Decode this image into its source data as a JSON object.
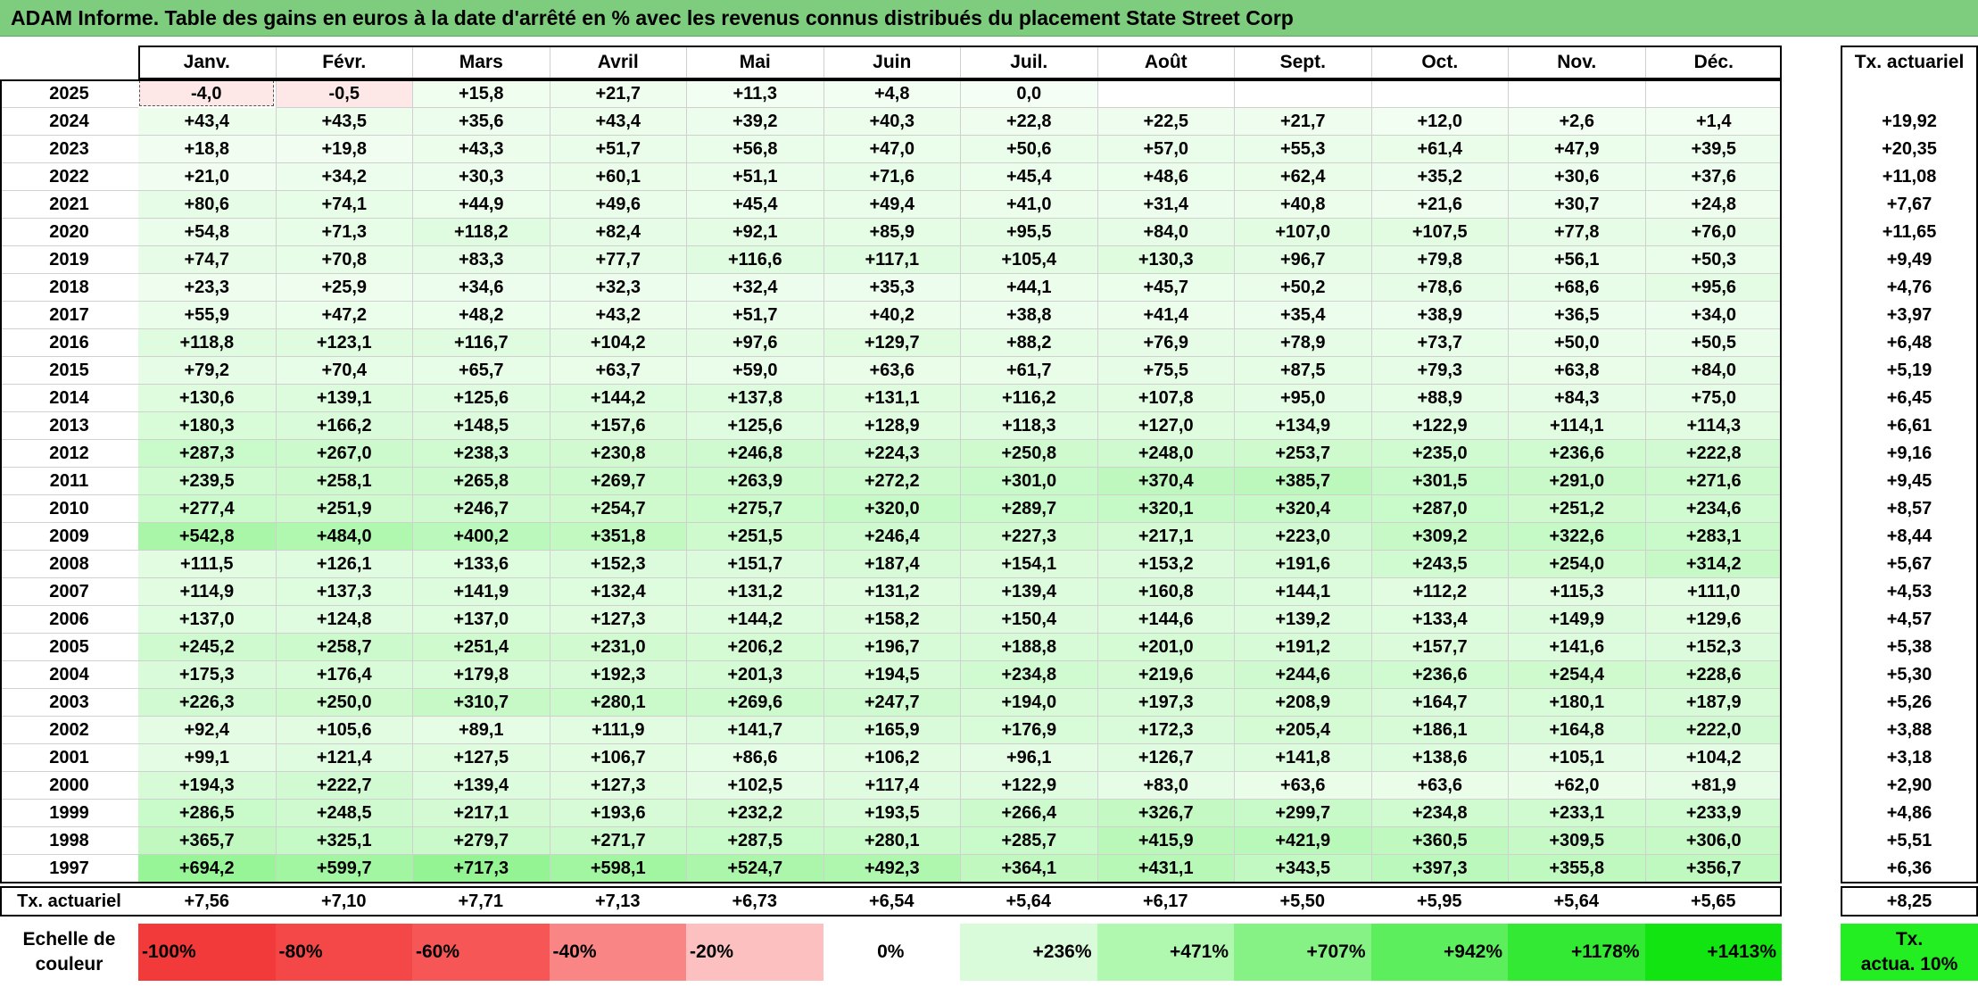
{
  "title": "ADAM Informe. Table des gains en euros à la date d'arrêté en % avec les revenus connus distribués du placement State Street Corp",
  "colors": {
    "title_bg": "#7ecc7e",
    "positive": "#5cf25c",
    "negative": "#ff5a5a"
  },
  "chart_data": {
    "type": "table",
    "columns": [
      "Janv.",
      "Févr.",
      "Mars",
      "Avril",
      "Mai",
      "Juin",
      "Juil.",
      "Août",
      "Sept.",
      "Oct.",
      "Nov.",
      "Déc."
    ],
    "rate_header": "Tx. actuariel",
    "rows": [
      {
        "year": "2025",
        "values": [
          "-4,0",
          "-0,5",
          "+15,8",
          "+21,7",
          "+11,3",
          "+4,8",
          "0,0",
          "",
          "",
          "",
          "",
          ""
        ],
        "rate": ""
      },
      {
        "year": "2024",
        "values": [
          "+43,4",
          "+43,5",
          "+35,6",
          "+43,4",
          "+39,2",
          "+40,3",
          "+22,8",
          "+22,5",
          "+21,7",
          "+12,0",
          "+2,6",
          "+1,4"
        ],
        "rate": "+19,92"
      },
      {
        "year": "2023",
        "values": [
          "+18,8",
          "+19,8",
          "+43,3",
          "+51,7",
          "+56,8",
          "+47,0",
          "+50,6",
          "+57,0",
          "+55,3",
          "+61,4",
          "+47,9",
          "+39,5"
        ],
        "rate": "+20,35"
      },
      {
        "year": "2022",
        "values": [
          "+21,0",
          "+34,2",
          "+30,3",
          "+60,1",
          "+51,1",
          "+71,6",
          "+45,4",
          "+48,6",
          "+62,4",
          "+35,2",
          "+30,6",
          "+37,6"
        ],
        "rate": "+11,08"
      },
      {
        "year": "2021",
        "values": [
          "+80,6",
          "+74,1",
          "+44,9",
          "+49,6",
          "+45,4",
          "+49,4",
          "+41,0",
          "+31,4",
          "+40,8",
          "+21,6",
          "+30,7",
          "+24,8"
        ],
        "rate": "+7,67"
      },
      {
        "year": "2020",
        "values": [
          "+54,8",
          "+71,3",
          "+118,2",
          "+82,4",
          "+92,1",
          "+85,9",
          "+95,5",
          "+84,0",
          "+107,0",
          "+107,5",
          "+77,8",
          "+76,0"
        ],
        "rate": "+11,65"
      },
      {
        "year": "2019",
        "values": [
          "+74,7",
          "+70,8",
          "+83,3",
          "+77,7",
          "+116,6",
          "+117,1",
          "+105,4",
          "+130,3",
          "+96,7",
          "+79,8",
          "+56,1",
          "+50,3"
        ],
        "rate": "+9,49"
      },
      {
        "year": "2018",
        "values": [
          "+23,3",
          "+25,9",
          "+34,6",
          "+32,3",
          "+32,4",
          "+35,3",
          "+44,1",
          "+45,7",
          "+50,2",
          "+78,6",
          "+68,6",
          "+95,6"
        ],
        "rate": "+4,76"
      },
      {
        "year": "2017",
        "values": [
          "+55,9",
          "+47,2",
          "+48,2",
          "+43,2",
          "+51,7",
          "+40,2",
          "+38,8",
          "+41,4",
          "+35,4",
          "+38,9",
          "+36,5",
          "+34,0"
        ],
        "rate": "+3,97"
      },
      {
        "year": "2016",
        "values": [
          "+118,8",
          "+123,1",
          "+116,7",
          "+104,2",
          "+97,6",
          "+129,7",
          "+88,2",
          "+76,9",
          "+78,9",
          "+73,7",
          "+50,0",
          "+50,5"
        ],
        "rate": "+6,48"
      },
      {
        "year": "2015",
        "values": [
          "+79,2",
          "+70,4",
          "+65,7",
          "+63,7",
          "+59,0",
          "+63,6",
          "+61,7",
          "+75,5",
          "+87,5",
          "+79,3",
          "+63,8",
          "+84,0"
        ],
        "rate": "+5,19"
      },
      {
        "year": "2014",
        "values": [
          "+130,6",
          "+139,1",
          "+125,6",
          "+144,2",
          "+137,8",
          "+131,1",
          "+116,2",
          "+107,8",
          "+95,0",
          "+88,9",
          "+84,3",
          "+75,0"
        ],
        "rate": "+6,45"
      },
      {
        "year": "2013",
        "values": [
          "+180,3",
          "+166,2",
          "+148,5",
          "+157,6",
          "+125,6",
          "+128,9",
          "+118,3",
          "+127,0",
          "+134,9",
          "+122,9",
          "+114,1",
          "+114,3"
        ],
        "rate": "+6,61"
      },
      {
        "year": "2012",
        "values": [
          "+287,3",
          "+267,0",
          "+238,3",
          "+230,8",
          "+246,8",
          "+224,3",
          "+250,8",
          "+248,0",
          "+253,7",
          "+235,0",
          "+236,6",
          "+222,8"
        ],
        "rate": "+9,16"
      },
      {
        "year": "2011",
        "values": [
          "+239,5",
          "+258,1",
          "+265,8",
          "+269,7",
          "+263,9",
          "+272,2",
          "+301,0",
          "+370,4",
          "+385,7",
          "+301,5",
          "+291,0",
          "+271,6"
        ],
        "rate": "+9,45"
      },
      {
        "year": "2010",
        "values": [
          "+277,4",
          "+251,9",
          "+246,7",
          "+254,7",
          "+275,7",
          "+320,0",
          "+289,7",
          "+320,1",
          "+320,4",
          "+287,0",
          "+251,2",
          "+234,6"
        ],
        "rate": "+8,57"
      },
      {
        "year": "2009",
        "values": [
          "+542,8",
          "+484,0",
          "+400,2",
          "+351,8",
          "+251,5",
          "+246,4",
          "+227,3",
          "+217,1",
          "+223,0",
          "+309,2",
          "+322,6",
          "+283,1"
        ],
        "rate": "+8,44"
      },
      {
        "year": "2008",
        "values": [
          "+111,5",
          "+126,1",
          "+133,6",
          "+152,3",
          "+151,7",
          "+187,4",
          "+154,1",
          "+153,2",
          "+191,6",
          "+243,5",
          "+254,0",
          "+314,2"
        ],
        "rate": "+5,67"
      },
      {
        "year": "2007",
        "values": [
          "+114,9",
          "+137,3",
          "+141,9",
          "+132,4",
          "+131,2",
          "+131,2",
          "+139,4",
          "+160,8",
          "+144,1",
          "+112,2",
          "+115,3",
          "+111,0"
        ],
        "rate": "+4,53"
      },
      {
        "year": "2006",
        "values": [
          "+137,0",
          "+124,8",
          "+137,0",
          "+127,3",
          "+144,2",
          "+158,2",
          "+150,4",
          "+144,6",
          "+139,2",
          "+133,4",
          "+149,9",
          "+129,6"
        ],
        "rate": "+4,57"
      },
      {
        "year": "2005",
        "values": [
          "+245,2",
          "+258,7",
          "+251,4",
          "+231,0",
          "+206,2",
          "+196,7",
          "+188,8",
          "+201,0",
          "+191,2",
          "+157,7",
          "+141,6",
          "+152,3"
        ],
        "rate": "+5,38"
      },
      {
        "year": "2004",
        "values": [
          "+175,3",
          "+176,4",
          "+179,8",
          "+192,3",
          "+201,3",
          "+194,5",
          "+234,8",
          "+219,6",
          "+244,6",
          "+236,6",
          "+254,4",
          "+228,6"
        ],
        "rate": "+5,30"
      },
      {
        "year": "2003",
        "values": [
          "+226,3",
          "+250,0",
          "+310,7",
          "+280,1",
          "+269,6",
          "+247,7",
          "+194,0",
          "+197,3",
          "+208,9",
          "+164,7",
          "+180,1",
          "+187,9"
        ],
        "rate": "+5,26"
      },
      {
        "year": "2002",
        "values": [
          "+92,4",
          "+105,6",
          "+89,1",
          "+111,9",
          "+141,7",
          "+165,9",
          "+176,9",
          "+172,3",
          "+205,4",
          "+186,1",
          "+164,8",
          "+222,0"
        ],
        "rate": "+3,88"
      },
      {
        "year": "2001",
        "values": [
          "+99,1",
          "+121,4",
          "+127,5",
          "+106,7",
          "+86,6",
          "+106,2",
          "+96,1",
          "+126,7",
          "+141,8",
          "+138,6",
          "+105,1",
          "+104,2"
        ],
        "rate": "+3,18"
      },
      {
        "year": "2000",
        "values": [
          "+194,3",
          "+222,7",
          "+139,4",
          "+127,3",
          "+102,5",
          "+117,4",
          "+122,9",
          "+83,0",
          "+63,6",
          "+63,6",
          "+62,0",
          "+81,9"
        ],
        "rate": "+2,90"
      },
      {
        "year": "1999",
        "values": [
          "+286,5",
          "+248,5",
          "+217,1",
          "+193,6",
          "+232,2",
          "+193,5",
          "+266,4",
          "+326,7",
          "+299,7",
          "+234,8",
          "+233,1",
          "+233,9"
        ],
        "rate": "+4,86"
      },
      {
        "year": "1998",
        "values": [
          "+365,7",
          "+325,1",
          "+279,7",
          "+271,7",
          "+287,5",
          "+280,1",
          "+285,7",
          "+415,9",
          "+421,9",
          "+360,5",
          "+309,5",
          "+306,0"
        ],
        "rate": "+5,51"
      },
      {
        "year": "1997",
        "values": [
          "+694,2",
          "+599,7",
          "+717,3",
          "+598,1",
          "+524,7",
          "+492,3",
          "+364,1",
          "+431,1",
          "+343,5",
          "+397,3",
          "+355,8",
          "+356,7"
        ],
        "rate": "+6,36"
      }
    ],
    "footer": {
      "label": "Tx. actuariel",
      "values": [
        "+7,56",
        "+7,10",
        "+7,71",
        "+7,13",
        "+6,73",
        "+6,54",
        "+5,64",
        "+6,17",
        "+5,50",
        "+5,95",
        "+5,64",
        "+5,65"
      ],
      "rate": "+8,25"
    },
    "legend": {
      "label_line1": "Echelle de",
      "label_line2": "couleur",
      "steps": [
        {
          "text": "-100%",
          "color": "#f23a3a"
        },
        {
          "text": "-80%",
          "color": "#f44848"
        },
        {
          "text": "-60%",
          "color": "#f65656"
        },
        {
          "text": "-40%",
          "color": "#fa8585"
        },
        {
          "text": "-20%",
          "color": "#fcc0c0"
        },
        {
          "text": "0%",
          "color": "#ffffff"
        },
        {
          "text": "+236%",
          "color": "#d9fbd9"
        },
        {
          "text": "+471%",
          "color": "#b0f7b0"
        },
        {
          "text": "+707%",
          "color": "#86f286"
        },
        {
          "text": "+942%",
          "color": "#5cee5c"
        },
        {
          "text": "+1178%",
          "color": "#33e933"
        },
        {
          "text": "+1413%",
          "color": "#12e412"
        }
      ],
      "rate_line1": "Tx.",
      "rate_line2": "actua. 10%",
      "rate_color": "#22ee22"
    }
  }
}
